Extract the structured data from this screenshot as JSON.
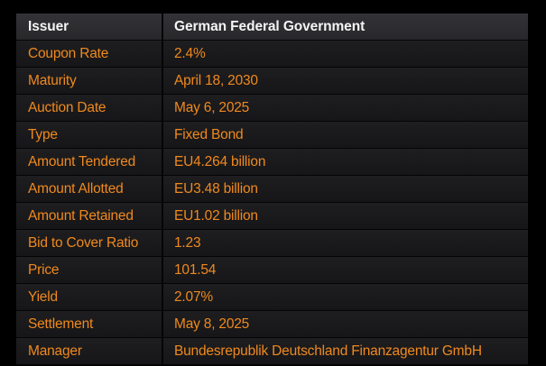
{
  "colors": {
    "background": "#000000",
    "accent": "#f0891e",
    "header_text": "#f4f4f4",
    "header_row_bg": "#2d2d30",
    "data_row_bg": "#19191b",
    "divider": "#050505"
  },
  "table": {
    "header": {
      "label": "Issuer",
      "value": "German Federal Government"
    },
    "rows": [
      {
        "label": "Coupon Rate",
        "value": "2.4%"
      },
      {
        "label": "Maturity",
        "value": "April 18, 2030"
      },
      {
        "label": "Auction Date",
        "value": "May 6, 2025"
      },
      {
        "label": "Type",
        "value": "Fixed Bond"
      },
      {
        "label": "Amount Tendered",
        "value": "EU4.264 billion"
      },
      {
        "label": "Amount Allotted",
        "value": "EU3.48 billion"
      },
      {
        "label": "Amount Retained",
        "value": "EU1.02 billion"
      },
      {
        "label": "Bid to Cover Ratio",
        "value": "1.23"
      },
      {
        "label": "Price",
        "value": "101.54"
      },
      {
        "label": "Yield",
        "value": "2.07%"
      },
      {
        "label": "Settlement",
        "value": "May 8, 2025"
      },
      {
        "label": "Manager",
        "value": "Bundesrepublik Deutschland Finanzagentur GmbH"
      }
    ]
  }
}
